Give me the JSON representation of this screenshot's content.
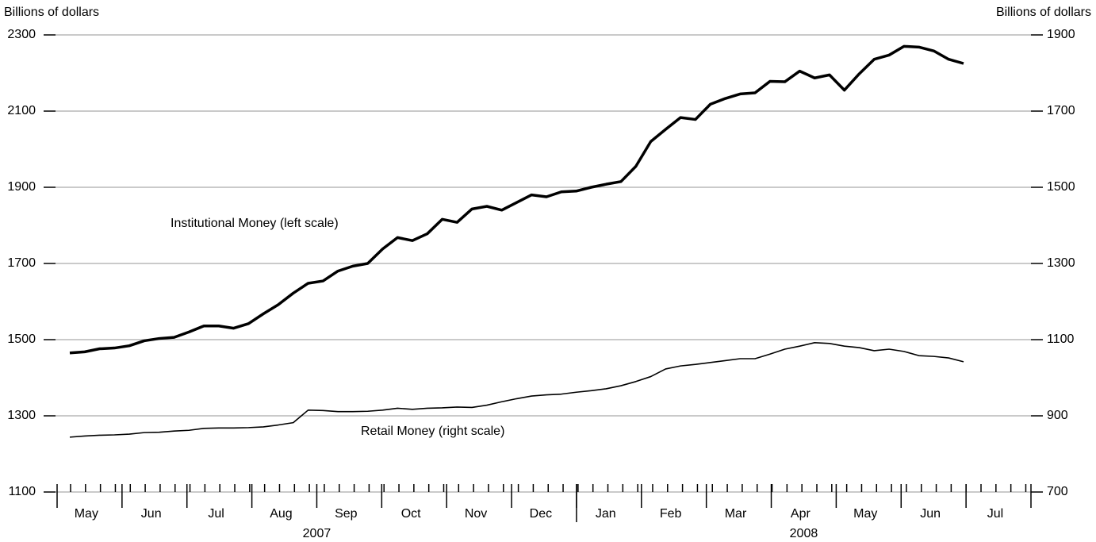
{
  "chart_data": {
    "type": "line",
    "y_label": "Billions of dollars",
    "y2_label": "Billions of dollars",
    "ylim": [
      1100,
      2300
    ],
    "yticks": [
      1100,
      1300,
      1500,
      1700,
      1900,
      2100,
      2300
    ],
    "y2lim": [
      700,
      1900
    ],
    "y2ticks": [
      700,
      900,
      1100,
      1300,
      1500,
      1700,
      1900
    ],
    "grid": true,
    "months": [
      "May",
      "Jun",
      "Jul",
      "Aug",
      "Sep",
      "Oct",
      "Nov",
      "Dec",
      "Jan",
      "Feb",
      "Mar",
      "Apr",
      "May",
      "Jun",
      "Jul"
    ],
    "years": [
      "2007",
      "2008"
    ],
    "series": [
      {
        "name": "Institutional Money (left scale)",
        "color": "#000000",
        "axis": "y",
        "values": [
          1465,
          1468,
          1476,
          1478,
          1484,
          1497,
          1503,
          1506,
          1520,
          1536,
          1536,
          1530,
          1542,
          1568,
          1592,
          1622,
          1648,
          1654,
          1680,
          1693,
          1700,
          1738,
          1768,
          1760,
          1778,
          1816,
          1808,
          1843,
          1850,
          1840,
          1860,
          1880,
          1875,
          1888,
          1890,
          1900,
          1908,
          1915,
          1955,
          2020,
          2052,
          2083,
          2078,
          2118,
          2133,
          2145,
          2148,
          2178,
          2177,
          2205,
          2187,
          2195,
          2155,
          2198,
          2236,
          2247,
          2270,
          2268,
          2258,
          2236,
          2225
        ]
      },
      {
        "name": "Retail Money (right scale)",
        "color": "#000000",
        "axis": "y2",
        "values": [
          844,
          847,
          849,
          850,
          852,
          856,
          857,
          860,
          862,
          867,
          868,
          868,
          869,
          871,
          876,
          882,
          915,
          914,
          911,
          911,
          912,
          915,
          920,
          917,
          920,
          921,
          923,
          922,
          928,
          937,
          945,
          952,
          955,
          957,
          962,
          966,
          971,
          979,
          990,
          1003,
          1023,
          1031,
          1035,
          1040,
          1045,
          1050,
          1050,
          1062,
          1075,
          1083,
          1092,
          1090,
          1083,
          1079,
          1071,
          1075,
          1069,
          1058,
          1056,
          1052,
          1042
        ]
      }
    ]
  }
}
